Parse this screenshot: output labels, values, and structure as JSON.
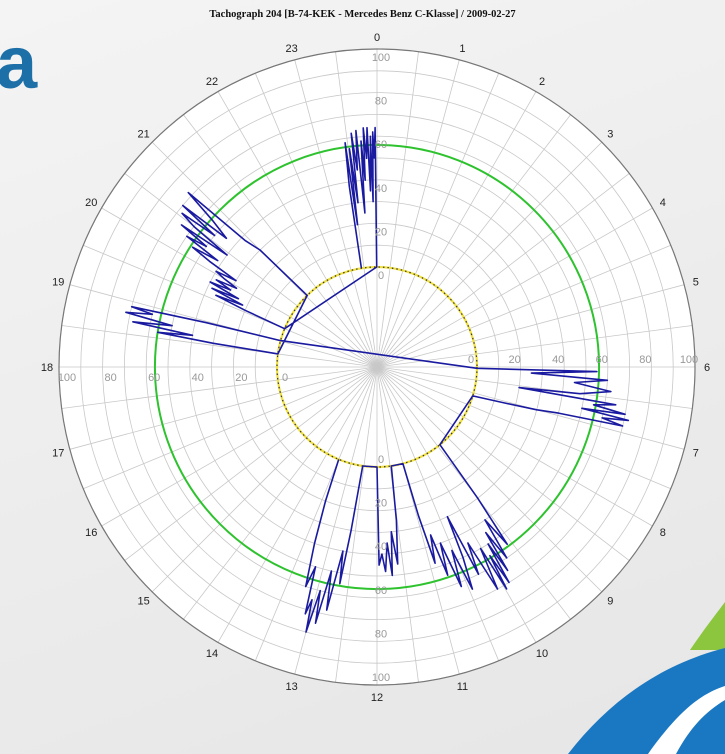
{
  "title": "Tachograph 204 [B-74-KEK - Mercedes Benz C-Klasse] / 2009-02-27",
  "logo_fragment": "a",
  "colors": {
    "series": "#1a1aa0",
    "reference_circle": "#2ec22e",
    "inner_circle": "#f0e040",
    "grid": "#c8c8c8",
    "logo": "#1d6fa8",
    "swoosh_blue": "#1a78c2",
    "swoosh_green": "#8cc63f"
  },
  "chart_data": {
    "type": "polar-line",
    "angular_axis": {
      "unit": "hour",
      "ticks": [
        "0",
        "1",
        "2",
        "3",
        "4",
        "5",
        "6",
        "7",
        "8",
        "9",
        "10",
        "11",
        "12",
        "13",
        "14",
        "15",
        "16",
        "17",
        "18",
        "19",
        "20",
        "21",
        "22",
        "23"
      ]
    },
    "radial_axis": {
      "range": [
        0,
        100
      ],
      "ticks": [
        "0",
        "20",
        "40",
        "60",
        "80",
        "100"
      ]
    },
    "reference_circle_value": 56,
    "grid": true,
    "series": [
      {
        "values": [
          [
            23.4,
            0
          ],
          [
            23.42,
            38
          ],
          [
            23.46,
            58
          ],
          [
            23.48,
            20
          ],
          [
            23.52,
            55
          ],
          [
            23.56,
            30
          ],
          [
            23.58,
            62
          ],
          [
            23.62,
            45
          ],
          [
            23.66,
            63
          ],
          [
            23.7,
            25
          ],
          [
            23.73,
            58
          ],
          [
            23.76,
            40
          ],
          [
            23.78,
            64
          ],
          [
            23.81,
            50
          ],
          [
            23.84,
            64
          ],
          [
            23.86,
            35
          ],
          [
            23.89,
            60
          ],
          [
            23.91,
            30
          ],
          [
            23.93,
            62
          ],
          [
            23.95,
            50
          ],
          [
            23.97,
            64
          ],
          [
            23.99,
            0
          ],
          [
            19.5,
            0
          ],
          [
            19.55,
            20
          ],
          [
            19.6,
            35
          ],
          [
            19.65,
            22
          ],
          [
            19.7,
            38
          ],
          [
            19.75,
            25
          ],
          [
            19.8,
            40
          ],
          [
            19.85,
            30
          ],
          [
            19.9,
            38
          ],
          [
            19.95,
            28
          ],
          [
            20.0,
            35
          ],
          [
            20.05,
            40
          ],
          [
            20.1,
            30
          ],
          [
            20.15,
            45
          ],
          [
            20.2,
            55
          ],
          [
            20.25,
            42
          ],
          [
            20.3,
            60
          ],
          [
            20.35,
            50
          ],
          [
            20.4,
            65
          ],
          [
            20.45,
            40
          ],
          [
            20.5,
            60
          ],
          [
            20.55,
            68
          ],
          [
            20.6,
            50
          ],
          [
            20.65,
            70
          ],
          [
            20.7,
            45
          ],
          [
            20.78,
            55
          ],
          [
            20.85,
            72
          ],
          [
            20.92,
            38
          ],
          [
            21.0,
            30
          ],
          [
            21.05,
            0
          ],
          [
            18.5,
            0
          ],
          [
            18.55,
            30
          ],
          [
            18.6,
            56
          ],
          [
            18.65,
            40
          ],
          [
            18.7,
            68
          ],
          [
            18.76,
            50
          ],
          [
            18.82,
            72
          ],
          [
            18.88,
            60
          ],
          [
            18.92,
            70
          ],
          [
            18.97,
            35
          ],
          [
            19.02,
            0
          ],
          [
            6.05,
            0
          ],
          [
            6.08,
            55
          ],
          [
            6.15,
            25
          ],
          [
            6.22,
            60
          ],
          [
            6.3,
            45
          ],
          [
            6.4,
            62
          ],
          [
            6.5,
            48
          ],
          [
            6.55,
            20
          ],
          [
            6.6,
            65
          ],
          [
            6.66,
            55
          ],
          [
            6.72,
            70
          ],
          [
            6.76,
            50
          ],
          [
            6.8,
            72
          ],
          [
            6.85,
            60
          ],
          [
            6.9,
            70
          ],
          [
            6.95,
            40
          ],
          [
            7.0,
            30
          ],
          [
            7.05,
            15
          ],
          [
            7.12,
            0
          ],
          [
            9.4,
            0
          ],
          [
            9.5,
            30
          ],
          [
            9.58,
            55
          ],
          [
            9.65,
            40
          ],
          [
            9.72,
            60
          ],
          [
            9.78,
            45
          ],
          [
            9.82,
            65
          ],
          [
            9.86,
            50
          ],
          [
            9.9,
            70
          ],
          [
            9.94,
            55
          ],
          [
            9.98,
            72
          ],
          [
            10.02,
            50
          ],
          [
            10.1,
            70
          ],
          [
            10.18,
            45
          ],
          [
            10.26,
            60
          ],
          [
            10.32,
            30
          ],
          [
            10.38,
            50
          ],
          [
            10.45,
            65
          ],
          [
            10.52,
            45
          ],
          [
            10.6,
            62
          ],
          [
            10.68,
            40
          ],
          [
            10.75,
            55
          ],
          [
            10.82,
            35
          ],
          [
            10.9,
            48
          ],
          [
            10.96,
            25
          ],
          [
            11.0,
            0
          ],
          [
            11.45,
            0
          ],
          [
            11.52,
            25
          ],
          [
            11.6,
            45
          ],
          [
            11.67,
            30
          ],
          [
            11.72,
            50
          ],
          [
            11.78,
            35
          ],
          [
            11.84,
            48
          ],
          [
            11.9,
            40
          ],
          [
            11.96,
            45
          ],
          [
            12.0,
            0
          ],
          [
            12.55,
            0
          ],
          [
            12.6,
            30
          ],
          [
            12.65,
            55
          ],
          [
            12.7,
            40
          ],
          [
            12.78,
            68
          ],
          [
            12.84,
            50
          ],
          [
            12.9,
            75
          ],
          [
            12.95,
            60
          ],
          [
            13.0,
            80
          ],
          [
            13.04,
            65
          ],
          [
            13.08,
            72
          ],
          [
            13.14,
            50
          ],
          [
            13.2,
            60
          ],
          [
            13.3,
            40
          ],
          [
            13.4,
            20
          ],
          [
            13.5,
            0
          ]
        ]
      }
    ]
  }
}
